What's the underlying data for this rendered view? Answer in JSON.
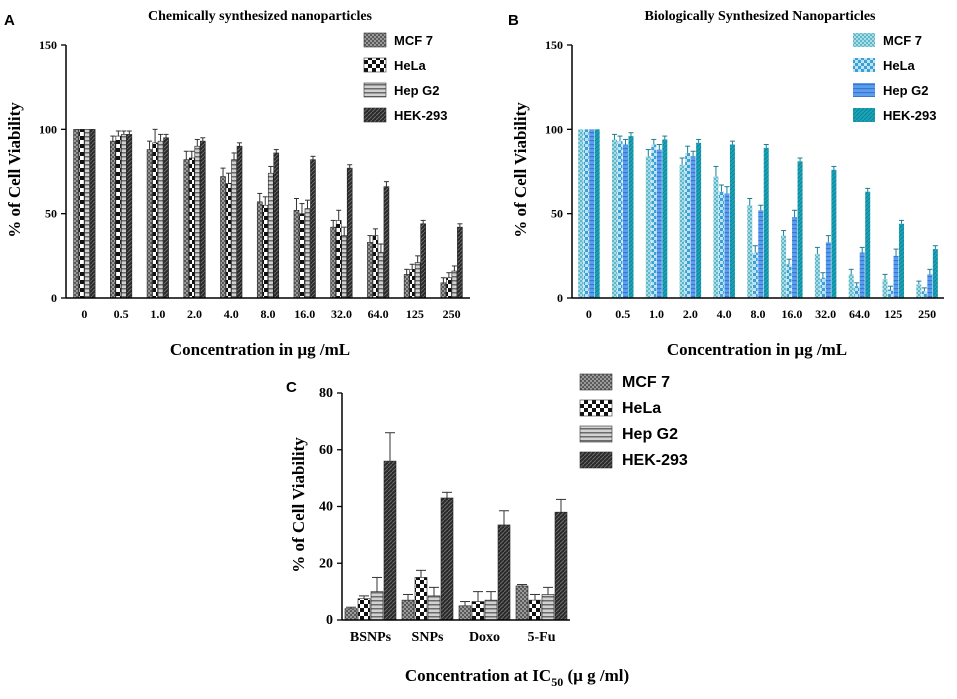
{
  "chart_data": [
    {
      "id": "A",
      "panel_letter": "A",
      "type": "bar",
      "title": "Chemically synthesized nanoparticles",
      "xlabel": "Concentration in µg /mL",
      "ylabel": "% of Cell Viability",
      "ylim": [
        0,
        150
      ],
      "yticks": [
        0,
        50,
        100,
        150
      ],
      "categories": [
        "0",
        "0.5",
        "1.0",
        "2.0",
        "4.0",
        "8.0",
        "16.0",
        "32.0",
        "64.0",
        "125",
        "250"
      ],
      "legend_position": "top-right",
      "series": [
        {
          "name": "MCF 7",
          "values": [
            100,
            93,
            88,
            82,
            72,
            57,
            52,
            42,
            33,
            14,
            9
          ],
          "errors": [
            0,
            3,
            5,
            5,
            5,
            5,
            7,
            4,
            4,
            3,
            3
          ]
        },
        {
          "name": "HeLa",
          "values": [
            100,
            96,
            92,
            83,
            68,
            55,
            50,
            46,
            37,
            17,
            12
          ],
          "errors": [
            0,
            3,
            8,
            4,
            6,
            5,
            6,
            6,
            4,
            3,
            3
          ]
        },
        {
          "name": "Hep G2",
          "values": [
            100,
            97,
            93,
            90,
            82,
            74,
            53,
            37,
            27,
            21,
            16
          ],
          "errors": [
            0,
            2,
            4,
            4,
            4,
            4,
            5,
            5,
            5,
            4,
            3
          ]
        },
        {
          "name": "HEK-293",
          "values": [
            100,
            97,
            95,
            93,
            90,
            86,
            82,
            77,
            66,
            44,
            42
          ],
          "errors": [
            0,
            2,
            2,
            2,
            2,
            2,
            2,
            2,
            3,
            2,
            2
          ]
        }
      ]
    },
    {
      "id": "B",
      "panel_letter": "B",
      "type": "bar",
      "title": "Biologically Synthesized Nanoparticles",
      "xlabel": "Concentration in µg /mL",
      "ylabel": "% of Cell Viability",
      "ylim": [
        0,
        150
      ],
      "yticks": [
        0,
        50,
        100,
        150
      ],
      "categories": [
        "0",
        "0.5",
        "1.0",
        "2.0",
        "4.0",
        "8.0",
        "16.0",
        "32.0",
        "64.0",
        "125",
        "250"
      ],
      "legend_position": "top-right",
      "series": [
        {
          "name": "MCF 7",
          "values": [
            100,
            94,
            84,
            79,
            72,
            55,
            37,
            26,
            14,
            11,
            8
          ],
          "errors": [
            0,
            3,
            4,
            4,
            6,
            4,
            3,
            4,
            3,
            3,
            2
          ]
        },
        {
          "name": "HeLa",
          "values": [
            100,
            93,
            91,
            86,
            63,
            27,
            20,
            12,
            7,
            5,
            4
          ],
          "errors": [
            0,
            3,
            3,
            4,
            4,
            4,
            3,
            3,
            2,
            2,
            2
          ]
        },
        {
          "name": "Hep G2",
          "values": [
            100,
            91,
            88,
            84,
            62,
            52,
            48,
            33,
            27,
            25,
            14
          ],
          "errors": [
            0,
            3,
            3,
            3,
            4,
            3,
            4,
            4,
            3,
            4,
            3
          ]
        },
        {
          "name": "HEK-293",
          "values": [
            100,
            96,
            94,
            92,
            91,
            89,
            81,
            76,
            63,
            44,
            29
          ],
          "errors": [
            0,
            2,
            2,
            2,
            2,
            2,
            2,
            2,
            2,
            2,
            2
          ]
        }
      ]
    },
    {
      "id": "C",
      "panel_letter": "C",
      "type": "bar",
      "title": "",
      "xlabel": "Concentration at IC",
      "xlabel_sub": "50",
      "xlabel_suffix": " (µ g /ml)",
      "ylabel": "% of Cell Viability",
      "ylim": [
        0,
        80
      ],
      "yticks": [
        0,
        20,
        40,
        60,
        80
      ],
      "categories": [
        "BSNPs",
        "SNPs",
        "Doxo",
        "5-Fu"
      ],
      "legend_position": "top-right",
      "series": [
        {
          "name": "MCF 7",
          "values": [
            4,
            7,
            5,
            12
          ],
          "errors": [
            0.5,
            2,
            1.5,
            0.5
          ]
        },
        {
          "name": "HeLa",
          "values": [
            7.5,
            15,
            6.5,
            7
          ],
          "errors": [
            1,
            2.5,
            3.5,
            2
          ]
        },
        {
          "name": "Hep G2",
          "values": [
            10,
            8.5,
            7,
            9
          ],
          "errors": [
            5,
            3,
            3,
            2.5
          ]
        },
        {
          "name": "HEK-293",
          "values": [
            56,
            43,
            33.5,
            38
          ],
          "errors": [
            10,
            2,
            5,
            4.5
          ]
        }
      ]
    }
  ]
}
